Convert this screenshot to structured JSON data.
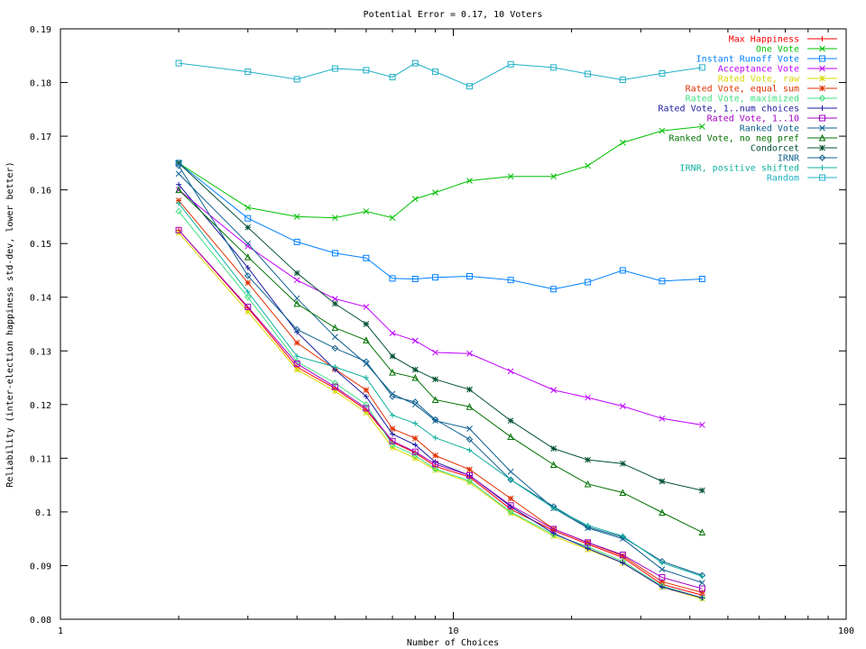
{
  "chart_data": {
    "type": "line",
    "title": "Potential Error = 0.17, 10 Voters",
    "xlabel": "Number of Choices",
    "ylabel": "Reliability (inter-election happiness std-dev, lower better)",
    "xscale": "log",
    "xlim": [
      1,
      100
    ],
    "ylim": [
      0.08,
      0.19
    ],
    "x_ticks": [
      1,
      10,
      100
    ],
    "y_ticks": [
      "0.08",
      "0.09",
      "0.1",
      "0.11",
      "0.12",
      "0.13",
      "0.14",
      "0.15",
      "0.16",
      "0.17",
      "0.18",
      "0.19"
    ],
    "grid": false,
    "legend_position": "top-right",
    "x": [
      2,
      3,
      4,
      5,
      6,
      7,
      8,
      9,
      11,
      14,
      18,
      22,
      27,
      34,
      43
    ],
    "series": [
      {
        "name": "Max Happiness",
        "color": "#ff0000",
        "marker": "plus",
        "values": [
          0.1525,
          0.138,
          0.127,
          0.123,
          0.119,
          0.113,
          0.111,
          0.1085,
          0.1065,
          0.1005,
          0.0965,
          0.094,
          0.0915,
          0.0865,
          0.0845
        ]
      },
      {
        "name": "One Vote",
        "color": "#00c000",
        "marker": "cross",
        "values": [
          0.165,
          0.1567,
          0.155,
          0.1548,
          0.156,
          0.1548,
          0.1583,
          0.1595,
          0.1617,
          0.1625,
          0.1625,
          0.1645,
          0.1688,
          0.171,
          0.1718
        ]
      },
      {
        "name": "Instant Runoff Vote",
        "color": "#0080ff",
        "marker": "square",
        "values": [
          0.165,
          0.1547,
          0.1503,
          0.1482,
          0.1473,
          0.1435,
          0.1434,
          0.1437,
          0.1439,
          0.1432,
          0.1415,
          0.1428,
          0.145,
          0.143,
          0.1434
        ]
      },
      {
        "name": "Acceptance Vote",
        "color": "#c000ff",
        "marker": "x",
        "values": [
          0.16,
          0.1495,
          0.1432,
          0.1397,
          0.1382,
          0.1333,
          0.1319,
          0.1297,
          0.1295,
          0.1262,
          0.1227,
          0.1213,
          0.1197,
          0.1174,
          0.1162
        ]
      },
      {
        "name": "Rated Vote, raw",
        "color": "#d8d800",
        "marker": "star",
        "values": [
          0.152,
          0.1373,
          0.1265,
          0.1225,
          0.1185,
          0.112,
          0.11,
          0.1078,
          0.1055,
          0.0998,
          0.0955,
          0.093,
          0.0905,
          0.086,
          0.0838
        ]
      },
      {
        "name": "Rated Vote, equal sum",
        "color": "#e03000",
        "marker": "star",
        "values": [
          0.158,
          0.1427,
          0.1315,
          0.1266,
          0.1227,
          0.1155,
          0.1137,
          0.1105,
          0.1079,
          0.1025,
          0.0968,
          0.0943,
          0.0918,
          0.087,
          0.085
        ]
      },
      {
        "name": "Rated Vote, maximized",
        "color": "#40e080",
        "marker": "diamond",
        "values": [
          0.156,
          0.14,
          0.128,
          0.124,
          0.12,
          0.1125,
          0.1105,
          0.108,
          0.1058,
          0.1,
          0.0958,
          0.0935,
          0.0908,
          0.0862,
          0.084
        ]
      },
      {
        "name": "Rated Vote, 1..num choices",
        "color": "#1a1aa0",
        "marker": "plus",
        "values": [
          0.161,
          0.1455,
          0.1335,
          0.1265,
          0.1215,
          0.1145,
          0.1125,
          0.1093,
          0.1068,
          0.101,
          0.096,
          0.0932,
          0.0905,
          0.086,
          0.084
        ]
      },
      {
        "name": "Rated Vote, 1..10",
        "color": "#a000c0",
        "marker": "square",
        "values": [
          0.1525,
          0.1382,
          0.1276,
          0.1233,
          0.1193,
          0.1132,
          0.1112,
          0.1089,
          0.1068,
          0.1012,
          0.0968,
          0.0943,
          0.092,
          0.0878,
          0.0857
        ]
      },
      {
        "name": "Ranked Vote",
        "color": "#0a5f8f",
        "marker": "x",
        "values": [
          0.163,
          0.15,
          0.1398,
          0.1326,
          0.1276,
          0.122,
          0.12,
          0.117,
          0.1155,
          0.1075,
          0.1007,
          0.097,
          0.095,
          0.0893,
          0.0868
        ]
      },
      {
        "name": "Ranked Vote, no neg pref",
        "color": "#007000",
        "marker": "triangle",
        "values": [
          0.16,
          0.1475,
          0.1388,
          0.1343,
          0.132,
          0.126,
          0.125,
          0.1209,
          0.1196,
          0.114,
          0.1088,
          0.1052,
          0.1036,
          0.0999,
          0.0962
        ]
      },
      {
        "name": "Condorcet",
        "color": "#005030",
        "marker": "star",
        "values": [
          0.165,
          0.153,
          0.1445,
          0.1388,
          0.135,
          0.129,
          0.1265,
          0.1247,
          0.1228,
          0.117,
          0.1118,
          0.1097,
          0.109,
          0.1057,
          0.104
        ]
      },
      {
        "name": "IRNR",
        "color": "#106090",
        "marker": "diamond",
        "values": [
          0.1645,
          0.144,
          0.134,
          0.1305,
          0.128,
          0.1215,
          0.1205,
          0.1172,
          0.1135,
          0.106,
          0.101,
          0.0972,
          0.0953,
          0.0908,
          0.0882
        ]
      },
      {
        "name": "IRNR, positive shifted",
        "color": "#10b0a0",
        "marker": "plus",
        "values": [
          0.1575,
          0.141,
          0.129,
          0.127,
          0.125,
          0.118,
          0.1165,
          0.1138,
          0.1115,
          0.106,
          0.1007,
          0.0975,
          0.0955,
          0.0905,
          0.088
        ]
      },
      {
        "name": "Random",
        "color": "#20b0c8",
        "marker": "square",
        "values": [
          0.1836,
          0.182,
          0.1806,
          0.1826,
          0.1823,
          0.181,
          0.1836,
          0.182,
          0.1793,
          0.1834,
          0.1828,
          0.1816,
          0.1805,
          0.1817,
          0.1828
        ]
      }
    ]
  }
}
